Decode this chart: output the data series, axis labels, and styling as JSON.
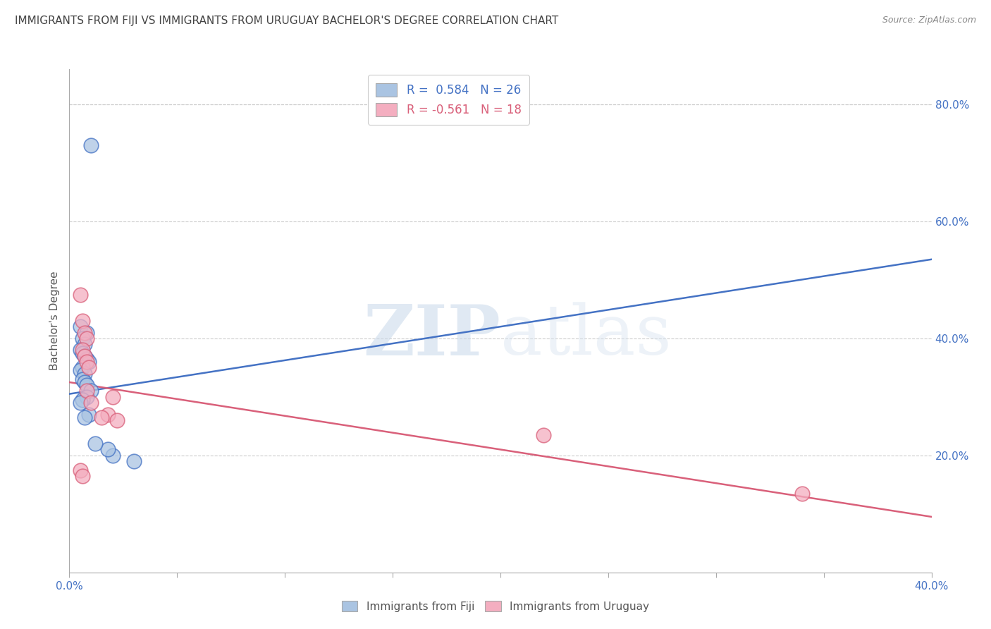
{
  "title": "IMMIGRANTS FROM FIJI VS IMMIGRANTS FROM URUGUAY BACHELOR'S DEGREE CORRELATION CHART",
  "source": "Source: ZipAtlas.com",
  "ylabel": "Bachelor's Degree",
  "xlim": [
    0.0,
    0.4
  ],
  "ylim": [
    0.0,
    0.86
  ],
  "fiji_r": 0.584,
  "fiji_n": 26,
  "uruguay_r": -0.561,
  "uruguay_n": 18,
  "fiji_color": "#aac4e2",
  "fiji_line_color": "#4472c4",
  "uruguay_color": "#f4aec0",
  "uruguay_line_color": "#d9607a",
  "fiji_x": [
    0.01,
    0.005,
    0.008,
    0.006,
    0.007,
    0.005,
    0.006,
    0.007,
    0.008,
    0.009,
    0.006,
    0.005,
    0.007,
    0.006,
    0.007,
    0.008,
    0.01,
    0.008,
    0.006,
    0.005,
    0.009,
    0.007,
    0.02,
    0.03,
    0.018,
    0.012
  ],
  "fiji_y": [
    0.73,
    0.42,
    0.41,
    0.4,
    0.39,
    0.38,
    0.375,
    0.37,
    0.365,
    0.36,
    0.35,
    0.345,
    0.34,
    0.33,
    0.325,
    0.32,
    0.31,
    0.3,
    0.295,
    0.29,
    0.27,
    0.265,
    0.2,
    0.19,
    0.21,
    0.22
  ],
  "uruguay_x": [
    0.005,
    0.006,
    0.007,
    0.008,
    0.006,
    0.007,
    0.008,
    0.009,
    0.02,
    0.018,
    0.015,
    0.022,
    0.005,
    0.006,
    0.22,
    0.34,
    0.008,
    0.01
  ],
  "uruguay_y": [
    0.475,
    0.43,
    0.41,
    0.4,
    0.38,
    0.37,
    0.36,
    0.35,
    0.3,
    0.27,
    0.265,
    0.26,
    0.175,
    0.165,
    0.235,
    0.135,
    0.31,
    0.29
  ],
  "fiji_line_x0": 0.0,
  "fiji_line_y0": 0.305,
  "fiji_line_x1": 0.4,
  "fiji_line_y1": 0.535,
  "uruguay_line_x0": 0.0,
  "uruguay_line_y0": 0.325,
  "uruguay_line_x1": 0.4,
  "uruguay_line_y1": 0.095,
  "watermark_zip": "ZIP",
  "watermark_atlas": "atlas",
  "background_color": "#ffffff",
  "grid_color": "#cccccc",
  "title_color": "#444444",
  "tick_color": "#4472c4",
  "legend_label_fiji": "Immigrants from Fiji",
  "legend_label_uruguay": "Immigrants from Uruguay"
}
